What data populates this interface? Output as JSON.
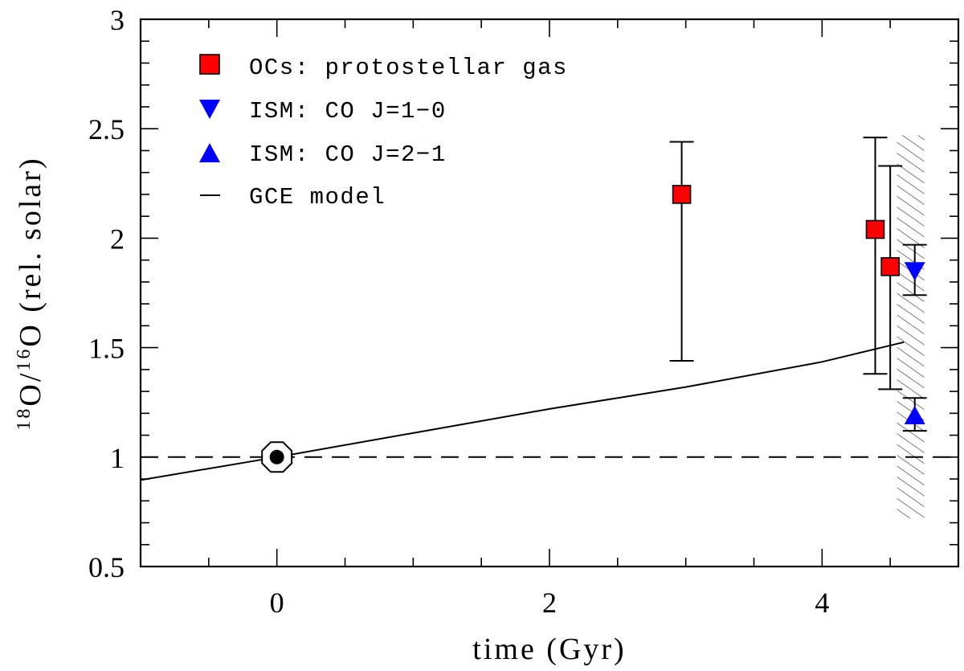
{
  "chart_data": {
    "type": "scatter",
    "xlabel": "time (Gyr)",
    "ylabel_parts": [
      "18",
      "O/",
      "16",
      "O (rel. solar)"
    ],
    "xlim": [
      -1,
      5
    ],
    "ylim": [
      0.5,
      3
    ],
    "x_ticks": [
      0,
      2,
      4
    ],
    "x_tick_labels": [
      "0",
      "2",
      "4"
    ],
    "x_minor_step": 0.5,
    "y_ticks": [
      0.5,
      1,
      1.5,
      2,
      2.5,
      3
    ],
    "y_tick_labels": [
      "0.5",
      "1",
      "1.5",
      "2",
      "2.5",
      "3"
    ],
    "y_minor_step": 0.1,
    "legend": [
      {
        "marker": "square",
        "color": "#ff0000",
        "label": "OCs: protostellar gas"
      },
      {
        "marker": "triangle-down",
        "color": "#0000ff",
        "label": "ISM: CO J=1−0"
      },
      {
        "marker": "triangle-up",
        "color": "#0000ff",
        "label": "ISM: CO J=2−1"
      },
      {
        "marker": "line",
        "color": "#000000",
        "label": "GCE model"
      }
    ],
    "series": [
      {
        "name": "OCs: protostellar gas",
        "marker": "square",
        "color": "#ff0000",
        "points": [
          {
            "x": 2.97,
            "y": 2.2,
            "ylo": 1.44,
            "yhi": 2.44
          },
          {
            "x": 4.39,
            "y": 2.04,
            "ylo": 1.38,
            "yhi": 2.46
          },
          {
            "x": 4.5,
            "y": 1.87,
            "ylo": 1.31,
            "yhi": 2.33
          }
        ]
      },
      {
        "name": "ISM: CO J=1−0",
        "marker": "triangle-down",
        "color": "#0000ff",
        "points": [
          {
            "x": 4.68,
            "y": 1.85,
            "ylo": 1.74,
            "yhi": 1.97
          }
        ]
      },
      {
        "name": "ISM: CO J=2−1",
        "marker": "triangle-up",
        "color": "#0000ff",
        "points": [
          {
            "x": 4.68,
            "y": 1.19,
            "ylo": 1.12,
            "yhi": 1.27
          }
        ]
      },
      {
        "name": "GCE model",
        "marker": "line",
        "color": "#000000",
        "x": [
          -1,
          0,
          1,
          2,
          3,
          4,
          4.6
        ],
        "y": [
          0.895,
          1.0,
          1.11,
          1.22,
          1.32,
          1.435,
          1.525
        ]
      }
    ],
    "reference_line": {
      "y": 1.0,
      "style": "dashed"
    },
    "sun_marker": {
      "x": 0,
      "y": 1.0,
      "symbol": "sun"
    },
    "hatched_band": {
      "x0": 4.55,
      "x1": 4.75,
      "y0": 0.72,
      "y1": 2.47
    }
  }
}
